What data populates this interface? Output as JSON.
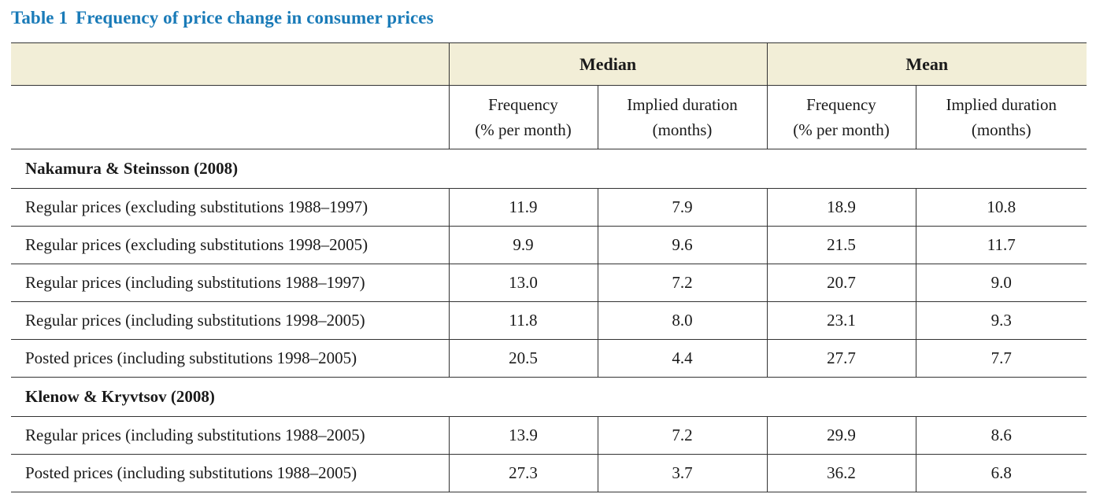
{
  "caption": {
    "number": "Table 1",
    "title": "Frequency of price change in consumer prices"
  },
  "header": {
    "group1": "Median",
    "group2": "Mean",
    "sub": [
      {
        "line1": "Frequency",
        "line2": "(% per month)"
      },
      {
        "line1": "Implied duration",
        "line2": "(months)"
      },
      {
        "line1": "Frequency",
        "line2": "(% per month)"
      },
      {
        "line1": "Implied duration",
        "line2": "(months)"
      }
    ]
  },
  "sections": [
    {
      "title": "Nakamura & Steinsson (2008)",
      "rows": [
        {
          "label": "Regular prices (excluding substitutions 1988–1997)",
          "values": [
            "11.9",
            "7.9",
            "18.9",
            "10.8"
          ]
        },
        {
          "label": "Regular prices (excluding substitutions 1998–2005)",
          "values": [
            "9.9",
            "9.6",
            "21.5",
            "11.7"
          ]
        },
        {
          "label": "Regular prices (including substitutions 1988–1997)",
          "values": [
            "13.0",
            "7.2",
            "20.7",
            "9.0"
          ]
        },
        {
          "label": "Regular prices (including substitutions 1998–2005)",
          "values": [
            "11.8",
            "8.0",
            "23.1",
            "9.3"
          ]
        },
        {
          "label": "Posted prices (including substitutions 1998–2005)",
          "values": [
            "20.5",
            "4.4",
            "27.7",
            "7.7"
          ]
        }
      ]
    },
    {
      "title": "Klenow & Kryvtsov (2008)",
      "rows": [
        {
          "label": "Regular prices (including substitutions 1988–2005)",
          "values": [
            "13.9",
            "7.2",
            "29.9",
            "8.6"
          ]
        },
        {
          "label": "Posted prices (including substitutions 1988–2005)",
          "values": [
            "27.3",
            "3.7",
            "36.2",
            "6.8"
          ]
        }
      ]
    }
  ]
}
